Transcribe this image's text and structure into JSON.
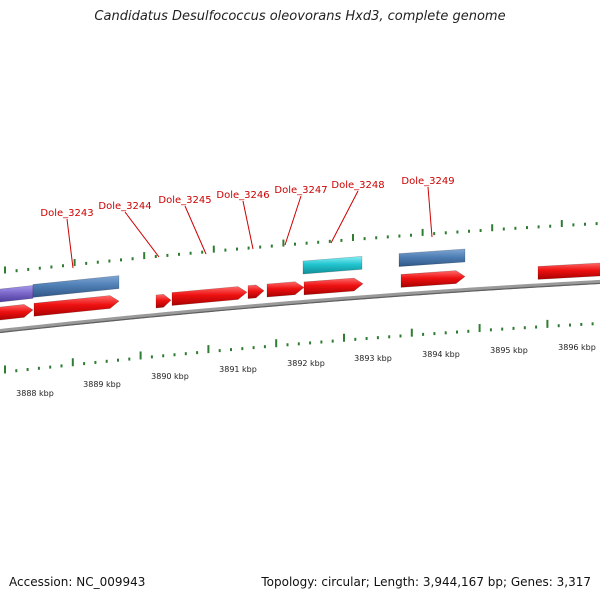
{
  "title": "Candidatus Desulfococcus oleovorans Hxd3, complete genome",
  "footer": {
    "accession": "Accession: NC_009943",
    "summary": "Topology: circular; Length: 3,944,167 bp; Genes: 3,317"
  },
  "scale_labels": [
    "3888 kbp",
    "3889 kbp",
    "3890 kbp",
    "3891 kbp",
    "3892 kbp",
    "3893 kbp",
    "3894 kbp",
    "3895 kbp",
    "3896 kbp"
  ],
  "gene_labels": [
    "Dole_3243",
    "Dole_3244",
    "Dole_3245",
    "Dole_3246",
    "Dole_3247",
    "Dole_3248",
    "Dole_3249"
  ],
  "colors": {
    "label": "#cc0000",
    "tick": "#2e7d32",
    "cds": "#ee1111",
    "rna": "#4f7fb5",
    "highlight": "#22c6d0",
    "purple": "#7b68c9",
    "backbone": "#8a8a8a"
  }
}
